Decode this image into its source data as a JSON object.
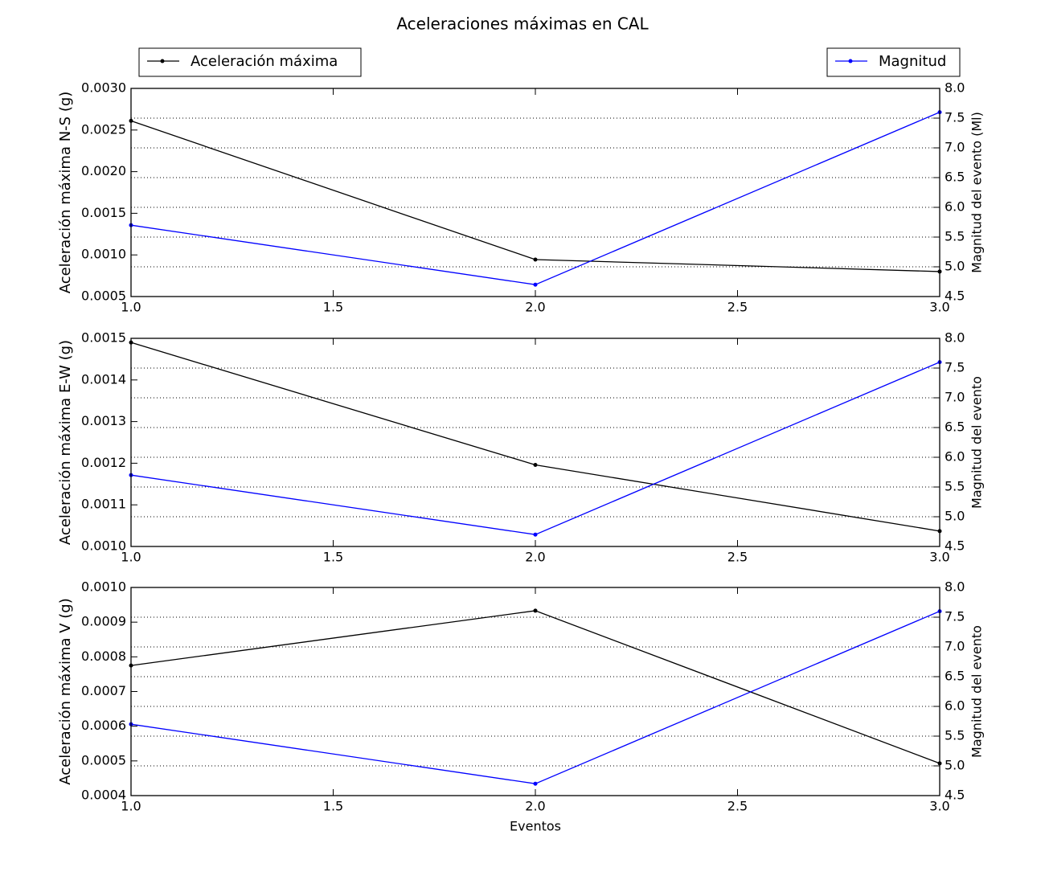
{
  "chart_data": [
    {
      "type": "line",
      "title": "Aceleraciones máximas en CAL",
      "ylabel": "Aceleración máxima N-S (g)",
      "y2label": "Magnitud del evento (Ml)",
      "x": [
        1,
        2,
        3
      ],
      "xlim": [
        1,
        3
      ],
      "xticks": [
        {
          "value": 1,
          "label": "1.0"
        },
        {
          "value": 1.5,
          "label": "1.5"
        },
        {
          "value": 2,
          "label": "2.0"
        },
        {
          "value": 2.5,
          "label": "2.5"
        },
        {
          "value": 3,
          "label": "3.0"
        }
      ],
      "ylim": [
        0.0005,
        0.003
      ],
      "yticks": [
        {
          "value": 0.0005,
          "label": "0.0005"
        },
        {
          "value": 0.001,
          "label": "0.0010"
        },
        {
          "value": 0.0015,
          "label": "0.0015"
        },
        {
          "value": 0.002,
          "label": "0.0020"
        },
        {
          "value": 0.0025,
          "label": "0.0025"
        },
        {
          "value": 0.003,
          "label": "0.0030"
        }
      ],
      "y2lim": [
        4.5,
        8
      ],
      "y2ticks": [
        {
          "value": 4.5,
          "label": "4.5"
        },
        {
          "value": 5,
          "label": "5.0"
        },
        {
          "value": 5.5,
          "label": "5.5"
        },
        {
          "value": 6,
          "label": "6.0"
        },
        {
          "value": 6.5,
          "label": "6.5"
        },
        {
          "value": 7,
          "label": "7.0"
        },
        {
          "value": 7.5,
          "label": "7.5"
        },
        {
          "value": 8,
          "label": "8.0"
        }
      ],
      "grid": "y2",
      "series": [
        {
          "name": "Aceleración máxima",
          "color": "#000000",
          "values": [
            0.00261,
            0.000944,
            0.0008
          ]
        },
        {
          "name": "Magnitud",
          "color": "#0000ff",
          "axis": "y2",
          "values": [
            5.7,
            4.7,
            7.6
          ]
        }
      ]
    },
    {
      "type": "line",
      "ylabel": "Aceleración máxima E-W (g)",
      "y2label": "Magnitud del evento",
      "x": [
        1,
        2,
        3
      ],
      "xlim": [
        1,
        3
      ],
      "xticks": [
        {
          "value": 1,
          "label": "1.0"
        },
        {
          "value": 1.5,
          "label": "1.5"
        },
        {
          "value": 2,
          "label": "2.0"
        },
        {
          "value": 2.5,
          "label": "2.5"
        },
        {
          "value": 3,
          "label": "3.0"
        }
      ],
      "ylim": [
        0.001,
        0.0015
      ],
      "yticks": [
        {
          "value": 0.001,
          "label": "0.0010"
        },
        {
          "value": 0.0011,
          "label": "0.0011"
        },
        {
          "value": 0.0012,
          "label": "0.0012"
        },
        {
          "value": 0.0013,
          "label": "0.0013"
        },
        {
          "value": 0.0014,
          "label": "0.0014"
        },
        {
          "value": 0.0015,
          "label": "0.0015"
        }
      ],
      "y2lim": [
        4.5,
        8
      ],
      "y2ticks": [
        {
          "value": 4.5,
          "label": "4.5"
        },
        {
          "value": 5,
          "label": "5.0"
        },
        {
          "value": 5.5,
          "label": "5.5"
        },
        {
          "value": 6,
          "label": "6.0"
        },
        {
          "value": 6.5,
          "label": "6.5"
        },
        {
          "value": 7,
          "label": "7.0"
        },
        {
          "value": 7.5,
          "label": "7.5"
        },
        {
          "value": 8,
          "label": "8.0"
        }
      ],
      "grid": "y2",
      "series": [
        {
          "color": "#000000",
          "values": [
            0.00149,
            0.001196,
            0.001037
          ]
        },
        {
          "color": "#0000ff",
          "axis": "y2",
          "values": [
            5.7,
            4.7,
            7.6
          ]
        }
      ]
    },
    {
      "type": "line",
      "ylabel": "Aceleración máxima V (g)",
      "y2label": "Magnitud del evento",
      "xlabel": "Eventos",
      "x": [
        1,
        2,
        3
      ],
      "xlim": [
        1,
        3
      ],
      "xticks": [
        {
          "value": 1,
          "label": "1.0"
        },
        {
          "value": 1.5,
          "label": "1.5"
        },
        {
          "value": 2,
          "label": "2.0"
        },
        {
          "value": 2.5,
          "label": "2.5"
        },
        {
          "value": 3,
          "label": "3.0"
        }
      ],
      "ylim": [
        0.0004,
        0.001
      ],
      "yticks": [
        {
          "value": 0.0004,
          "label": "0.0004"
        },
        {
          "value": 0.0005,
          "label": "0.0005"
        },
        {
          "value": 0.0006,
          "label": "0.0006"
        },
        {
          "value": 0.0007,
          "label": "0.0007"
        },
        {
          "value": 0.0008,
          "label": "0.0008"
        },
        {
          "value": 0.0009,
          "label": "0.0009"
        },
        {
          "value": 0.001,
          "label": "0.0010"
        }
      ],
      "y2lim": [
        4.5,
        8
      ],
      "y2ticks": [
        {
          "value": 4.5,
          "label": "4.5"
        },
        {
          "value": 5,
          "label": "5.0"
        },
        {
          "value": 5.5,
          "label": "5.5"
        },
        {
          "value": 6,
          "label": "6.0"
        },
        {
          "value": 6.5,
          "label": "6.5"
        },
        {
          "value": 7,
          "label": "7.0"
        },
        {
          "value": 7.5,
          "label": "7.5"
        },
        {
          "value": 8,
          "label": "8.0"
        }
      ],
      "grid": "y2",
      "series": [
        {
          "color": "#000000",
          "values": [
            0.000775,
            0.000933,
            0.000493
          ]
        },
        {
          "color": "#0000ff",
          "axis": "y2",
          "values": [
            5.7,
            4.7,
            7.6
          ]
        }
      ]
    }
  ]
}
